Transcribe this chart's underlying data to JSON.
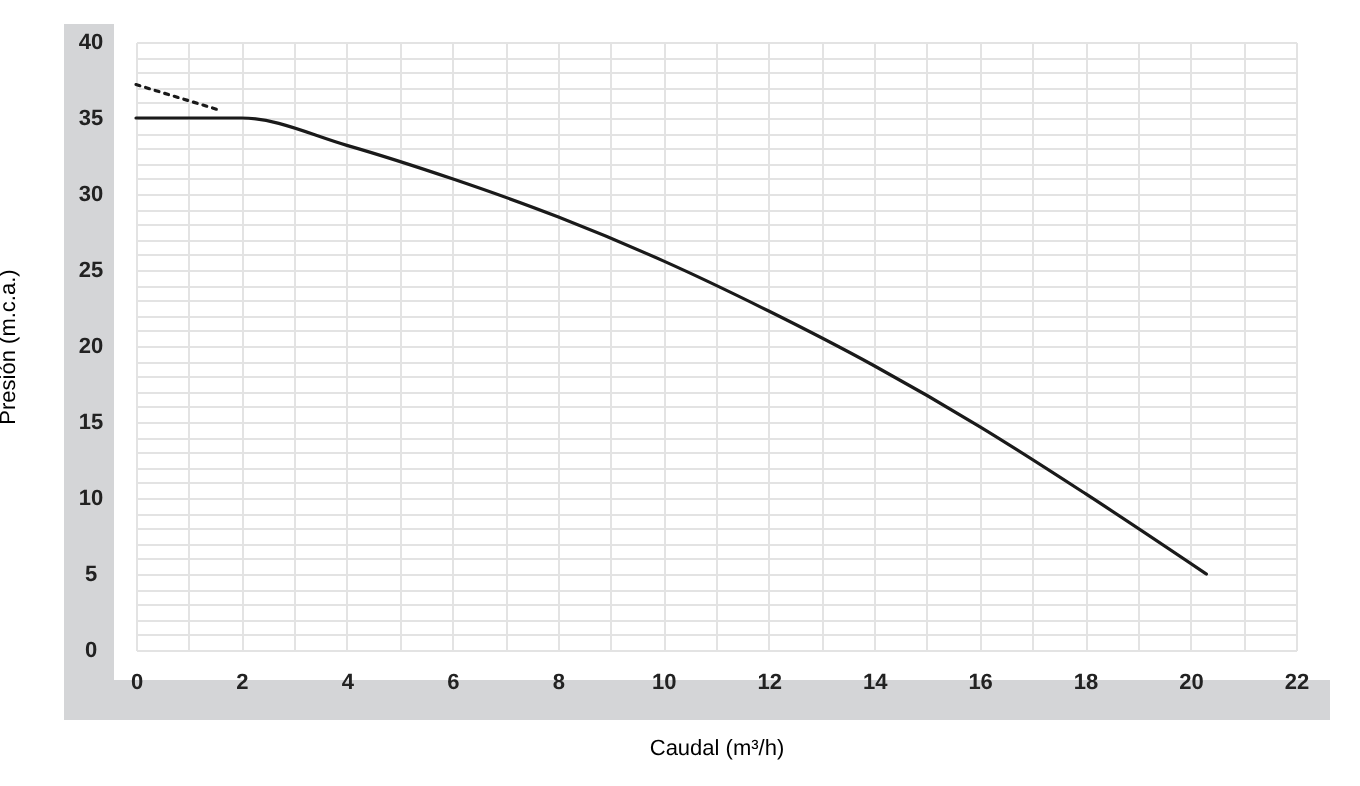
{
  "chart_data": {
    "type": "line",
    "xlabel": "Caudal (m³/h)",
    "ylabel": "Presión (m.c.a.)",
    "series": [
      {
        "color": "#1a1a1a",
        "line_style": "solid",
        "x": [
          0,
          2,
          4,
          6,
          8,
          10,
          12,
          14,
          16,
          18,
          20.3
        ],
        "values": [
          35,
          35,
          33.2,
          31,
          28.5,
          25.6,
          22.3,
          18.7,
          14.7,
          10.3,
          5
        ]
      },
      {
        "color": "#1a1a1a",
        "line_style": "dotted",
        "x": [
          0,
          1.6
        ],
        "values": [
          37.2,
          35.5
        ]
      }
    ],
    "xlim": [
      0,
      22
    ],
    "ylim": [
      0,
      40
    ],
    "xticks": [
      0,
      {
        "value": 1,
        "label": null
      },
      2,
      {
        "value": 3,
        "label": null
      },
      4,
      {
        "value": 5,
        "label": null
      },
      6,
      {
        "value": 7,
        "label": null
      },
      8,
      {
        "value": 9,
        "label": null
      },
      10,
      {
        "value": 11,
        "label": null
      },
      12,
      {
        "value": 13,
        "label": null
      },
      14,
      {
        "value": 15,
        "label": null
      },
      16,
      {
        "value": 17,
        "label": null
      },
      18,
      {
        "value": 19,
        "label": null
      },
      20,
      {
        "value": 21,
        "label": null
      },
      22
    ],
    "yticks": [
      0,
      {
        "value": 1,
        "label": null
      },
      {
        "value": 2,
        "label": null
      },
      {
        "value": 3,
        "label": null
      },
      {
        "value": 4,
        "label": null
      },
      5,
      {
        "value": 6,
        "label": null
      },
      {
        "value": 7,
        "label": null
      },
      {
        "value": 8,
        "label": null
      },
      {
        "value": 9,
        "label": null
      },
      10,
      {
        "value": 11,
        "label": null
      },
      {
        "value": 12,
        "label": null
      },
      {
        "value": 13,
        "label": null
      },
      {
        "value": 14,
        "label": null
      },
      15,
      {
        "value": 16,
        "label": null
      },
      {
        "value": 17,
        "label": null
      },
      {
        "value": 18,
        "label": null
      },
      {
        "value": 19,
        "label": null
      },
      20,
      {
        "value": 21,
        "label": null
      },
      {
        "value": 22,
        "label": null
      },
      {
        "value": 23,
        "label": null
      },
      {
        "value": 24,
        "label": null
      },
      25,
      {
        "value": 26,
        "label": null
      },
      {
        "value": 27,
        "label": null
      },
      {
        "value": 28,
        "label": null
      },
      {
        "value": 29,
        "label": null
      },
      30,
      {
        "value": 31,
        "label": null
      },
      {
        "value": 32,
        "label": null
      },
      {
        "value": 33,
        "label": null
      },
      {
        "value": 34,
        "label": null
      },
      35,
      {
        "value": 36,
        "label": null
      },
      {
        "value": 37,
        "label": null
      },
      {
        "value": 38,
        "label": null
      },
      {
        "value": 39,
        "label": null
      },
      40
    ],
    "grid": true,
    "marker": "none"
  }
}
